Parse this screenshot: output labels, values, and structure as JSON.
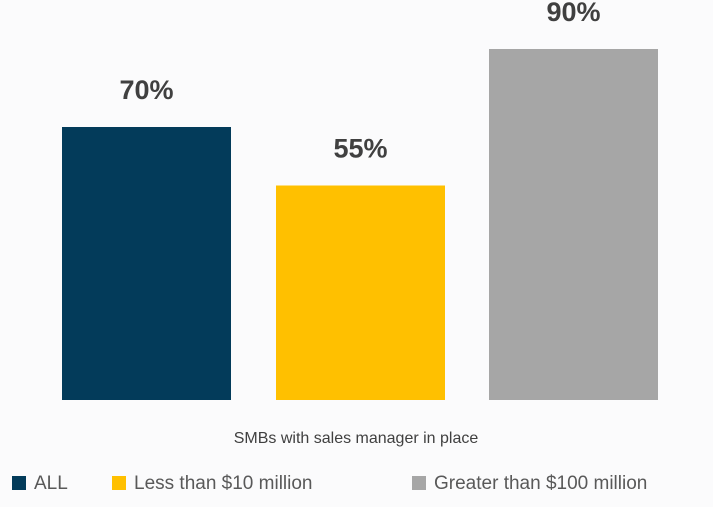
{
  "chart_data": {
    "type": "bar",
    "categories": [
      "SMBs with sales manager in place"
    ],
    "series": [
      {
        "name": "ALL",
        "values": [
          70
        ],
        "label": "70%",
        "color": "#033b5a"
      },
      {
        "name": "Less than $10 million",
        "values": [
          55
        ],
        "label": "55%",
        "color": "#ffc000"
      },
      {
        "name": "Greater than $100 million",
        "values": [
          90
        ],
        "label": "90%",
        "color": "#a6a6a6"
      }
    ],
    "xlabel": "SMBs with sales manager in place",
    "ylabel": "",
    "ylim": [
      0,
      100
    ],
    "grid": false,
    "legend": "bottom",
    "value_suffix": "%"
  }
}
